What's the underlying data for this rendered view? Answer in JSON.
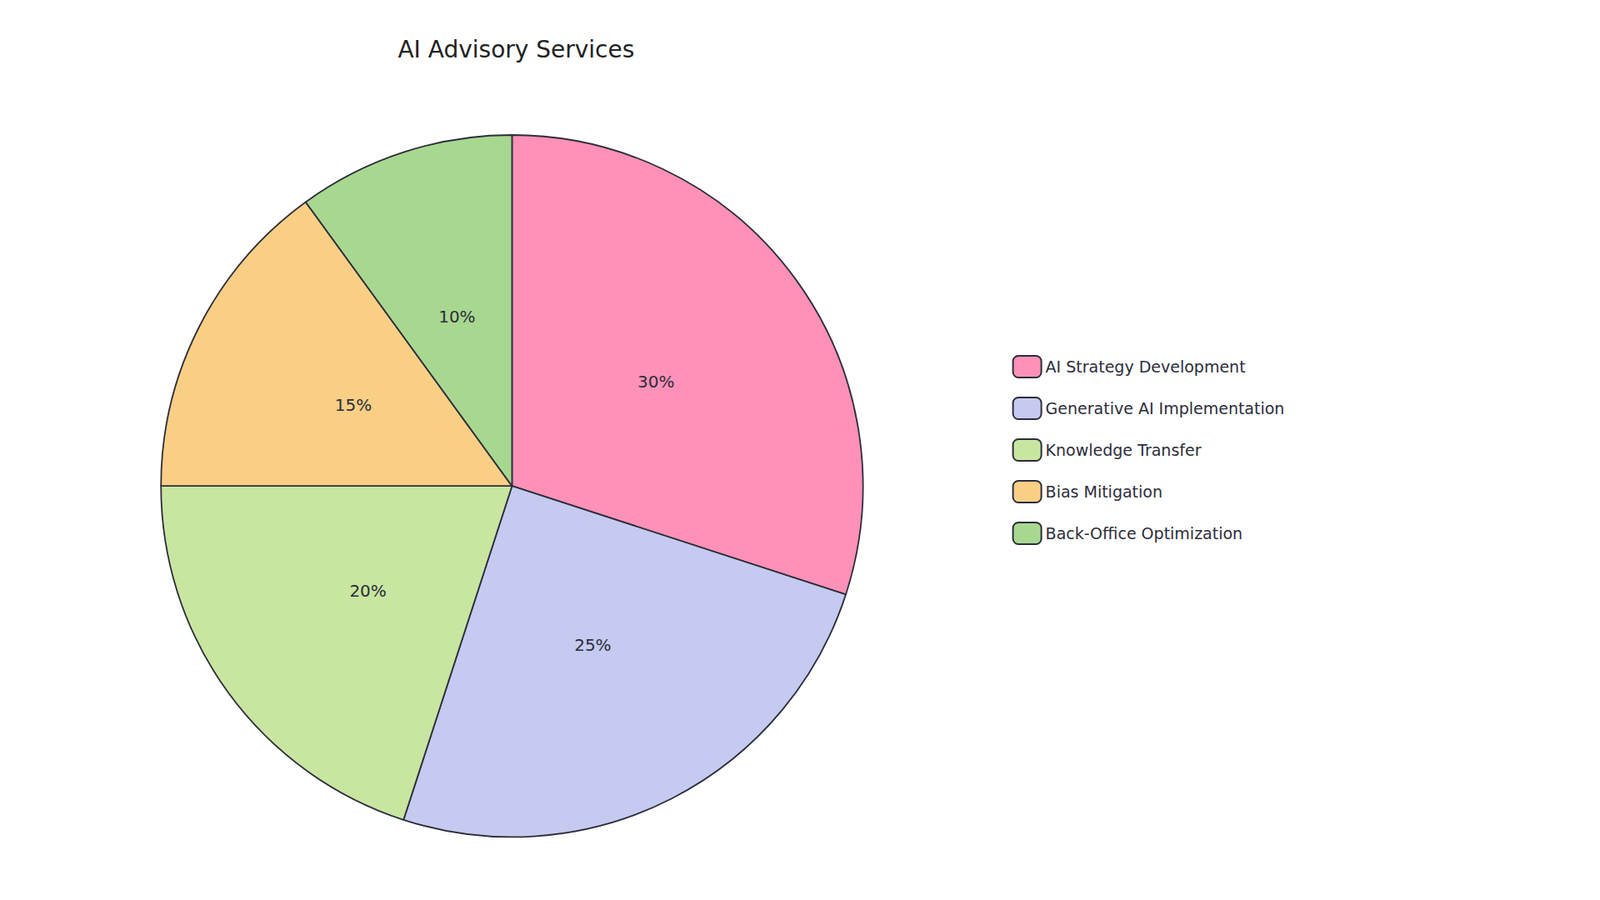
{
  "chart_data": {
    "type": "pie",
    "title": "AI Advisory Services",
    "categories": [
      "AI Strategy Development",
      "Generative AI Implementation",
      "Knowledge Transfer",
      "Bias Mitigation",
      "Back-Office Optimization"
    ],
    "values": [
      30,
      25,
      20,
      15,
      10
    ],
    "value_labels": [
      "30%",
      "25%",
      "20%",
      "15%",
      "10%"
    ],
    "colors": [
      "#FF91B8",
      "#C5CAF0",
      "#C8E6A0",
      "#F9CF85",
      "#A8D890"
    ],
    "data_labels": true,
    "legend": "right"
  }
}
